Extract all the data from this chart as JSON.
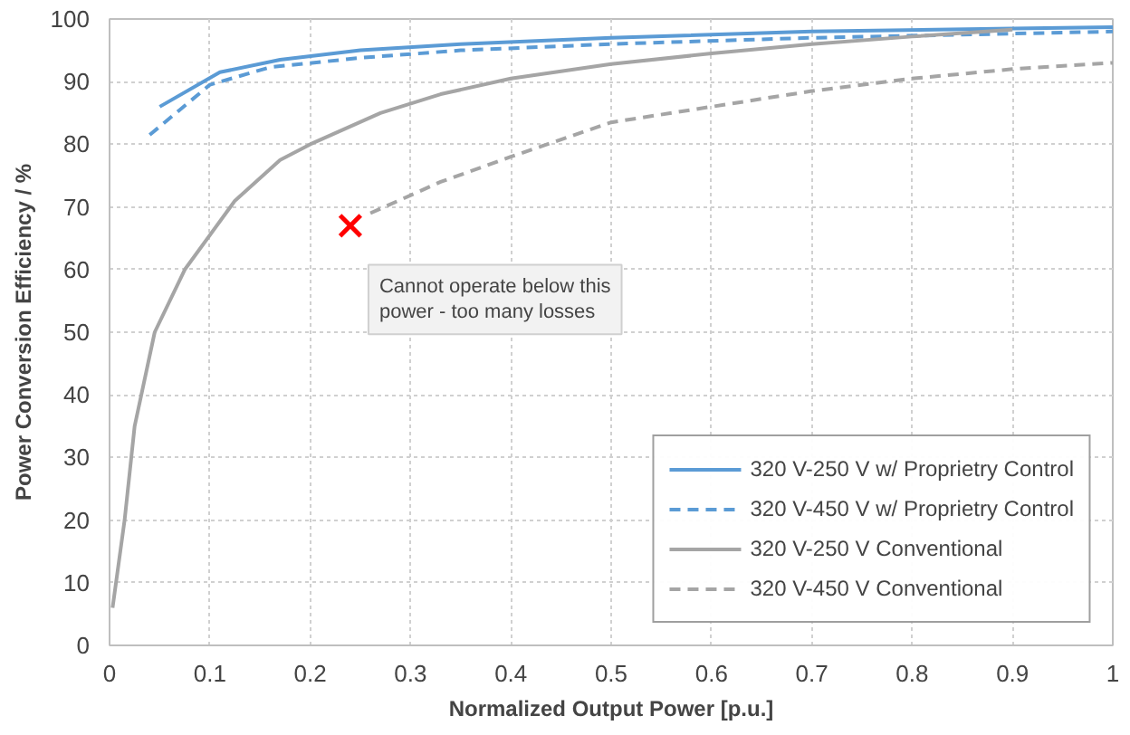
{
  "chart_data": {
    "type": "line",
    "xlabel": "Normalized Output Power [p.u.]",
    "ylabel": "Power Conversion Efficiency / %",
    "xlim": [
      0,
      1
    ],
    "ylim": [
      0,
      100
    ],
    "xticks": [
      0,
      0.1,
      0.2,
      0.3,
      0.4,
      0.5,
      0.6,
      0.7,
      0.8,
      0.9,
      1
    ],
    "yticks": [
      0,
      10,
      20,
      30,
      40,
      50,
      60,
      70,
      80,
      90,
      100
    ],
    "grid": true,
    "legend": "bottom right",
    "series": [
      {
        "name": "320 V-250 V w/ Proprietry Control",
        "color": "#5b9bd5",
        "line_style": "solid",
        "x": [
          0.05,
          0.11,
          0.17,
          0.25,
          0.35,
          0.5,
          0.7,
          0.9,
          1.0
        ],
        "values": [
          86,
          91.5,
          93.5,
          95,
          96,
          97,
          98,
          98.5,
          98.7
        ]
      },
      {
        "name": "320 V-450 V w/ Proprietry Control",
        "color": "#5b9bd5",
        "line_style": "dashed",
        "x": [
          0.04,
          0.1,
          0.16,
          0.25,
          0.35,
          0.5,
          0.7,
          0.85,
          1.0
        ],
        "values": [
          81.5,
          89.5,
          92.3,
          93.8,
          95,
          96,
          97,
          97.5,
          98
        ]
      },
      {
        "name": "320 V-250 V Conventional",
        "color": "#a5a5a5",
        "line_style": "solid",
        "x": [
          0.003,
          0.015,
          0.025,
          0.045,
          0.075,
          0.125,
          0.17,
          0.2,
          0.27,
          0.33,
          0.4,
          0.5,
          0.6,
          0.7,
          0.8,
          0.9
        ],
        "values": [
          6,
          20,
          35,
          50,
          60,
          71,
          77.5,
          80,
          85,
          88,
          90.5,
          92.8,
          94.5,
          96,
          97.2,
          98.3
        ]
      },
      {
        "name": "320 V-450 V Conventional",
        "color": "#a5a5a5",
        "line_style": "dashed",
        "x": [
          0.26,
          0.33,
          0.4,
          0.5,
          0.6,
          0.7,
          0.8,
          0.9,
          1.0
        ],
        "values": [
          69,
          74,
          78,
          83.5,
          86,
          88.5,
          90.5,
          92,
          93
        ]
      },
      {
        "type": "scatter",
        "marker": "cross",
        "color": "#ff0000",
        "x": [
          0.24
        ],
        "values": [
          67
        ]
      }
    ],
    "annotations": [
      {
        "text": "Cannot operate below this power - too many losses",
        "x": 0.24,
        "y": 67
      }
    ]
  }
}
